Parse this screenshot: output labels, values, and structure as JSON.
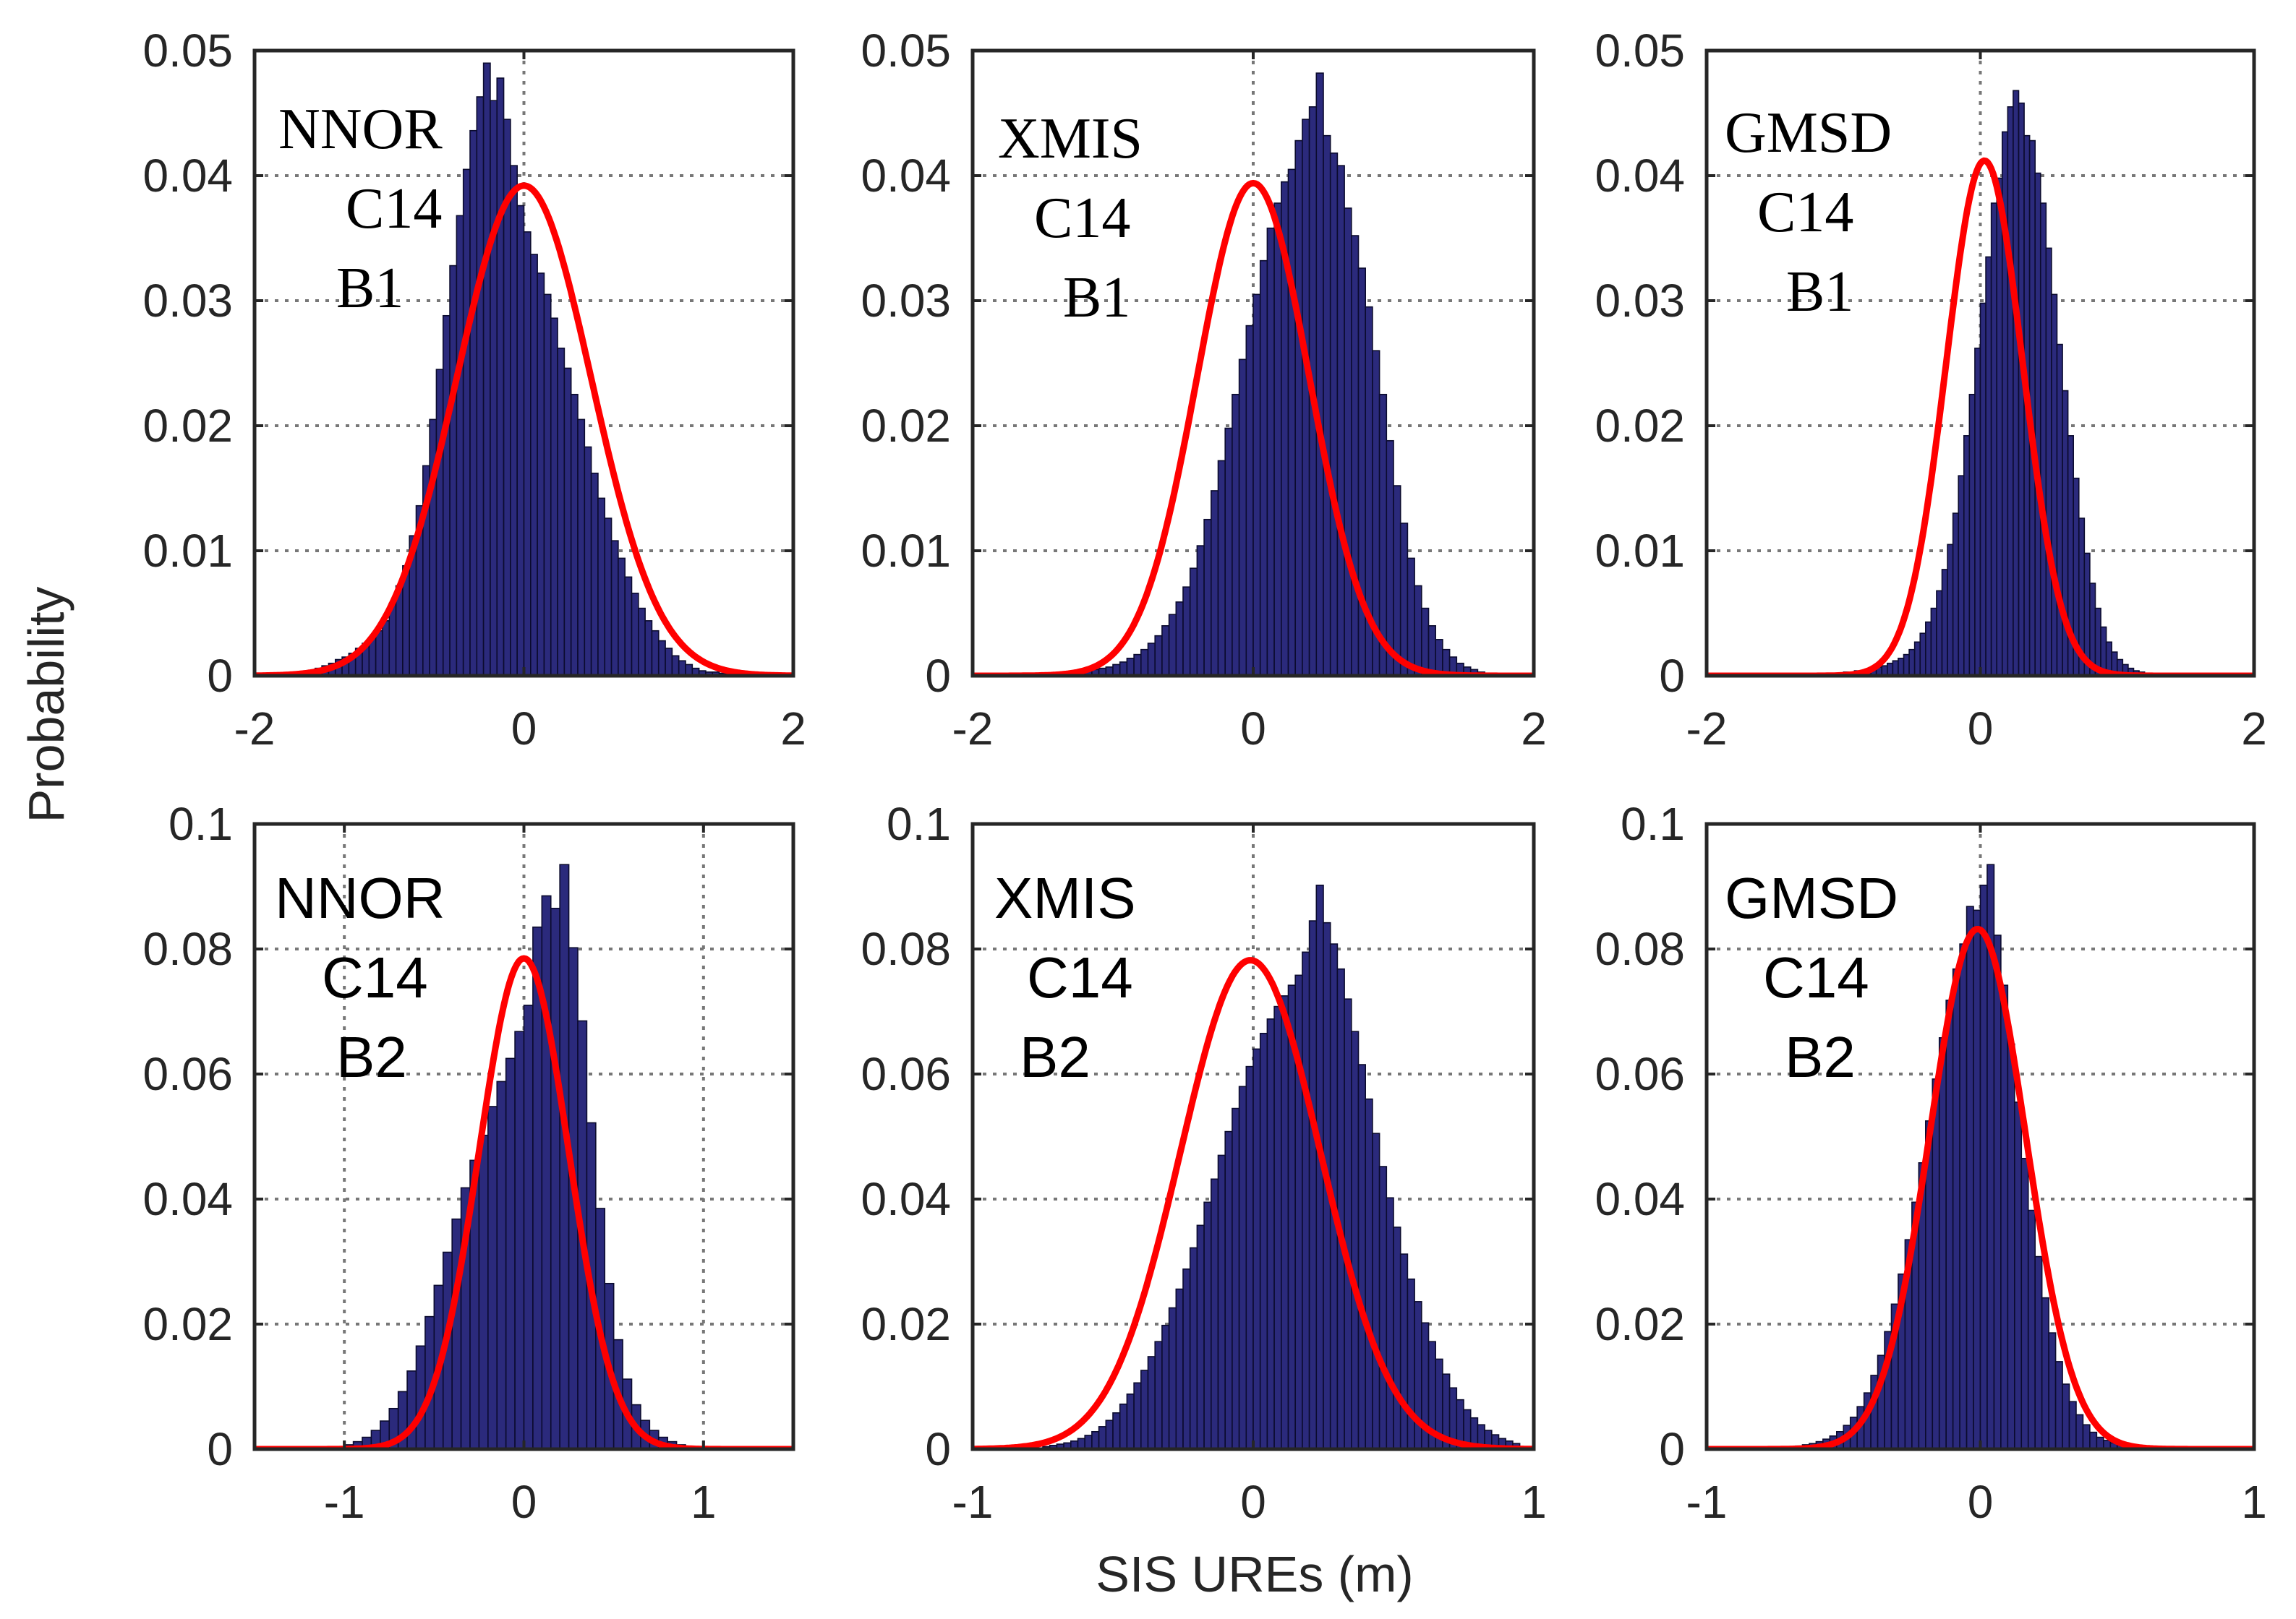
{
  "figure": {
    "ylabel": "Probability",
    "xlabel": "SIS UREs (m)"
  },
  "colors": {
    "bars": "#2b2a7c",
    "bar_edge": "#0b0b2e",
    "fit": "#ff0000",
    "grid": "#777777",
    "axes": "#262626"
  },
  "chart_data": [
    {
      "id": "nnor-b1",
      "type": "bar",
      "style": "serif",
      "annotation": [
        "NNOR",
        "C14",
        "B1"
      ],
      "xlim": [
        -2,
        2
      ],
      "ylim": [
        0,
        0.05
      ],
      "xticks": [
        -2,
        0,
        2
      ],
      "xtick_labels": [
        "-2",
        "0",
        "2"
      ],
      "yticks": [
        0,
        0.01,
        0.02,
        0.03,
        0.04,
        0.05
      ],
      "ytick_labels": [
        "0",
        "0.01",
        "0.02",
        "0.03",
        "0.04",
        "0.05"
      ],
      "xgrid": [
        0
      ],
      "fit": {
        "mean": 0.0,
        "sigma": 0.5,
        "peak": 0.0392
      },
      "bins": {
        "start": -1.6,
        "width": 0.05
      },
      "values": [
        0.0004,
        0.0006,
        0.0008,
        0.001,
        0.0013,
        0.0015,
        0.0018,
        0.0022,
        0.0026,
        0.0031,
        0.0036,
        0.0044,
        0.0058,
        0.0072,
        0.0088,
        0.0112,
        0.0136,
        0.0168,
        0.0205,
        0.0245,
        0.0288,
        0.0328,
        0.0368,
        0.0405,
        0.0436,
        0.0463,
        0.049,
        0.046,
        0.0478,
        0.0445,
        0.0408,
        0.0376,
        0.0355,
        0.0337,
        0.0322,
        0.0305,
        0.0286,
        0.0262,
        0.0246,
        0.0225,
        0.0205,
        0.0183,
        0.0162,
        0.0142,
        0.0126,
        0.0108,
        0.0094,
        0.0079,
        0.0066,
        0.0054,
        0.0044,
        0.0036,
        0.0028,
        0.0022,
        0.0016,
        0.0012,
        0.0009,
        0.0006,
        0.0004,
        0.0003,
        0.0003,
        0.0002,
        0.0002,
        0.0001,
        0.0001,
        0.0001,
        0.0001,
        0.0001,
        0.0001,
        0.0001
      ]
    },
    {
      "id": "xmis-b1",
      "type": "bar",
      "style": "serif",
      "annotation": [
        "XMIS",
        "C14",
        "B1"
      ],
      "xlim": [
        -2,
        2
      ],
      "ylim": [
        0,
        0.05
      ],
      "xticks": [
        -2,
        0,
        2
      ],
      "xtick_labels": [
        "-2",
        "0",
        "2"
      ],
      "yticks": [
        0,
        0.01,
        0.02,
        0.03,
        0.04,
        0.05
      ],
      "ytick_labels": [
        "0",
        "0.01",
        "0.02",
        "0.03",
        "0.04",
        "0.05"
      ],
      "xgrid": [
        0
      ],
      "fit": {
        "mean": 0.0,
        "sigma": 0.4,
        "peak": 0.0394
      },
      "bins": {
        "start": -1.3,
        "width": 0.05
      },
      "values": [
        0.0002,
        0.0003,
        0.0004,
        0.0005,
        0.0006,
        0.0007,
        0.0009,
        0.0011,
        0.0014,
        0.0017,
        0.0021,
        0.0026,
        0.0032,
        0.004,
        0.0049,
        0.0059,
        0.0071,
        0.0086,
        0.0104,
        0.0125,
        0.0148,
        0.0172,
        0.0198,
        0.0225,
        0.0253,
        0.028,
        0.0305,
        0.0332,
        0.0358,
        0.0378,
        0.0395,
        0.0405,
        0.0428,
        0.0445,
        0.0455,
        0.0482,
        0.0432,
        0.0418,
        0.0408,
        0.0374,
        0.0352,
        0.0326,
        0.0295,
        0.026,
        0.0225,
        0.0188,
        0.0152,
        0.0122,
        0.0094,
        0.0072,
        0.0054,
        0.004,
        0.0029,
        0.0021,
        0.0015,
        0.001,
        0.0007,
        0.0005,
        0.0003,
        0.0002
      ]
    },
    {
      "id": "gmsd-b1",
      "type": "bar",
      "style": "serif",
      "annotation": [
        "GMSD",
        "C14",
        "B1"
      ],
      "xlim": [
        -2,
        2
      ],
      "ylim": [
        0,
        0.05
      ],
      "xticks": [
        -2,
        0,
        2
      ],
      "xtick_labels": [
        "-2",
        "0",
        "2"
      ],
      "yticks": [
        0,
        0.01,
        0.02,
        0.03,
        0.04,
        0.05
      ],
      "ytick_labels": [
        "0",
        "0.01",
        "0.02",
        "0.03",
        "0.04",
        "0.05"
      ],
      "xgrid": [
        0
      ],
      "fit": {
        "mean": 0.03,
        "sigma": 0.28,
        "peak": 0.0412
      },
      "bins": {
        "start": -1.0,
        "width": 0.04
      },
      "values": [
        0.0003,
        0.0003,
        0.0004,
        0.0004,
        0.0005,
        0.0006,
        0.0007,
        0.0008,
        0.001,
        0.0012,
        0.0014,
        0.0017,
        0.0021,
        0.0027,
        0.0034,
        0.0043,
        0.0054,
        0.0068,
        0.0085,
        0.0105,
        0.013,
        0.016,
        0.0192,
        0.0225,
        0.0262,
        0.0298,
        0.0335,
        0.0378,
        0.0398,
        0.0435,
        0.0455,
        0.0468,
        0.0458,
        0.0432,
        0.0428,
        0.0402,
        0.0378,
        0.0342,
        0.0305,
        0.0265,
        0.0228,
        0.0192,
        0.0158,
        0.0126,
        0.0098,
        0.0074,
        0.0054,
        0.0039,
        0.0027,
        0.0019,
        0.0013,
        0.0009,
        0.0006,
        0.0004,
        0.0003
      ]
    },
    {
      "id": "nnor-b2",
      "type": "bar",
      "style": "sans",
      "annotation": [
        "NNOR",
        "C14",
        "B2"
      ],
      "xlim": [
        -1.5,
        1.5
      ],
      "ylim": [
        0,
        0.1
      ],
      "xticks": [
        -1,
        0,
        1
      ],
      "xtick_labels": [
        "-1",
        "0",
        "1"
      ],
      "yticks": [
        0,
        0.02,
        0.04,
        0.06,
        0.08,
        0.1
      ],
      "ytick_labels": [
        "0",
        "0.02",
        "0.04",
        "0.06",
        "0.08",
        "0.1"
      ],
      "xgrid": [
        -1,
        0,
        1
      ],
      "fit": {
        "mean": 0.0,
        "sigma": 0.25,
        "peak": 0.0785
      },
      "bins": {
        "start": -1.05,
        "width": 0.05
      },
      "values": [
        0.0004,
        0.0007,
        0.0012,
        0.0019,
        0.003,
        0.0045,
        0.0065,
        0.0092,
        0.0125,
        0.0165,
        0.0212,
        0.0262,
        0.0315,
        0.0368,
        0.0418,
        0.0462,
        0.0502,
        0.0548,
        0.0588,
        0.0625,
        0.0668,
        0.071,
        0.0835,
        0.0885,
        0.0865,
        0.0935,
        0.0802,
        0.0685,
        0.0522,
        0.0385,
        0.0265,
        0.0175,
        0.0112,
        0.0071,
        0.0046,
        0.003,
        0.0019,
        0.0012,
        0.0007,
        0.0004
      ]
    },
    {
      "id": "xmis-b2",
      "type": "bar",
      "style": "sans",
      "annotation": [
        "XMIS",
        "C14",
        "B2"
      ],
      "xlim": [
        -1,
        1
      ],
      "ylim": [
        0,
        0.1
      ],
      "xticks": [
        -1,
        0,
        1
      ],
      "xtick_labels": [
        "-1",
        "0",
        "1"
      ],
      "yticks": [
        0,
        0.02,
        0.04,
        0.06,
        0.08,
        0.1
      ],
      "ytick_labels": [
        "0",
        "0.02",
        "0.04",
        "0.06",
        "0.08",
        "0.1"
      ],
      "xgrid": [
        0
      ],
      "fit": {
        "mean": -0.01,
        "sigma": 0.25,
        "peak": 0.0782
      },
      "bins": {
        "start": -0.75,
        "width": 0.025
      },
      "values": [
        0.0004,
        0.0006,
        0.0008,
        0.001,
        0.0013,
        0.0017,
        0.0022,
        0.0028,
        0.0036,
        0.0046,
        0.0058,
        0.0072,
        0.0088,
        0.0106,
        0.0126,
        0.0148,
        0.0172,
        0.0198,
        0.0226,
        0.0256,
        0.0288,
        0.0322,
        0.0358,
        0.0395,
        0.0432,
        0.047,
        0.0508,
        0.0545,
        0.058,
        0.0612,
        0.064,
        0.0665,
        0.0688,
        0.0708,
        0.0725,
        0.0742,
        0.0758,
        0.0795,
        0.0845,
        0.0902,
        0.0842,
        0.0808,
        0.0768,
        0.072,
        0.0668,
        0.0615,
        0.056,
        0.0505,
        0.0452,
        0.0402,
        0.0355,
        0.0312,
        0.0272,
        0.0236,
        0.0202,
        0.0172,
        0.0144,
        0.012,
        0.0098,
        0.0079,
        0.0063,
        0.005,
        0.0039,
        0.003,
        0.0023,
        0.0017,
        0.0013,
        0.0009
      ]
    },
    {
      "id": "gmsd-b2",
      "type": "bar",
      "style": "sans",
      "annotation": [
        "GMSD",
        "C14",
        "B2"
      ],
      "xlim": [
        -1,
        1
      ],
      "ylim": [
        0,
        0.1
      ],
      "xticks": [
        -1,
        0,
        1
      ],
      "xtick_labels": [
        "-1",
        "0",
        "1"
      ],
      "yticks": [
        0,
        0.02,
        0.04,
        0.06,
        0.08,
        0.1
      ],
      "ytick_labels": [
        "0",
        "0.02",
        "0.04",
        "0.06",
        "0.08",
        "0.1"
      ],
      "xgrid": [
        0
      ],
      "fit": {
        "mean": -0.01,
        "sigma": 0.175,
        "peak": 0.0832
      },
      "bins": {
        "start": -0.7,
        "width": 0.025
      },
      "values": [
        0.0004,
        0.0005,
        0.0007,
        0.0009,
        0.0012,
        0.0016,
        0.0021,
        0.0028,
        0.0038,
        0.0051,
        0.0068,
        0.009,
        0.0118,
        0.015,
        0.0188,
        0.0232,
        0.028,
        0.0335,
        0.0395,
        0.0458,
        0.0525,
        0.0592,
        0.0658,
        0.0718,
        0.0768,
        0.0808,
        0.0868,
        0.0862,
        0.0902,
        0.0935,
        0.0822,
        0.0742,
        0.0648,
        0.0555,
        0.0465,
        0.0382,
        0.0308,
        0.0242,
        0.0186,
        0.014,
        0.0104,
        0.0076,
        0.0055,
        0.0039,
        0.0027,
        0.0019,
        0.0014,
        0.001,
        0.0008,
        0.0006,
        0.0004,
        0.0003
      ]
    }
  ]
}
